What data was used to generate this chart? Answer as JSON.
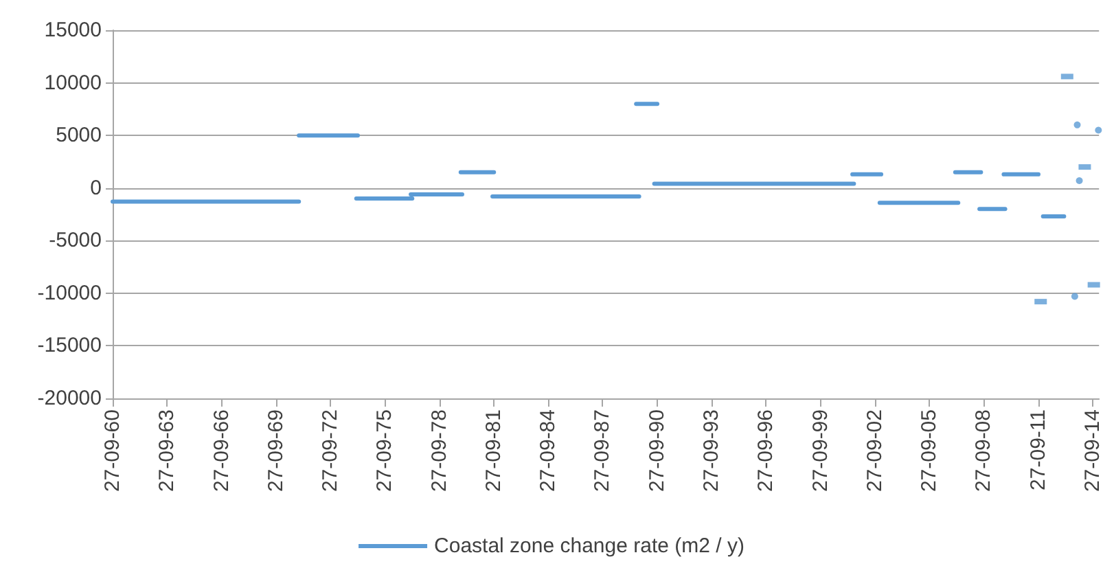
{
  "chart_data": {
    "type": "line",
    "xlim": [
      "1960-09-27",
      "2015-02-01"
    ],
    "xticks": [
      {
        "value": "1960-09-27",
        "label": "27-09-60"
      },
      {
        "value": "1963-09-27",
        "label": "27-09-63"
      },
      {
        "value": "1966-09-27",
        "label": "27-09-66"
      },
      {
        "value": "1969-09-27",
        "label": "27-09-69"
      },
      {
        "value": "1972-09-27",
        "label": "27-09-72"
      },
      {
        "value": "1975-09-27",
        "label": "27-09-75"
      },
      {
        "value": "1978-09-27",
        "label": "27-09-78"
      },
      {
        "value": "1981-09-27",
        "label": "27-09-81"
      },
      {
        "value": "1984-09-27",
        "label": "27-09-84"
      },
      {
        "value": "1987-09-27",
        "label": "27-09-87"
      },
      {
        "value": "1990-09-27",
        "label": "27-09-90"
      },
      {
        "value": "1993-09-27",
        "label": "27-09-93"
      },
      {
        "value": "1996-09-27",
        "label": "27-09-96"
      },
      {
        "value": "1999-09-27",
        "label": "27-09-99"
      },
      {
        "value": "2002-09-27",
        "label": "27-09-02"
      },
      {
        "value": "2005-09-27",
        "label": "27-09-05"
      },
      {
        "value": "2008-09-27",
        "label": "27-09-08"
      },
      {
        "value": "2011-09-27",
        "label": "27-09-11"
      },
      {
        "value": "2014-09-27",
        "label": "27-09-14"
      }
    ],
    "ylim": [
      -20000,
      15000
    ],
    "yticks": [
      -20000,
      -15000,
      -10000,
      -5000,
      0,
      5000,
      10000,
      15000
    ],
    "grid": "y",
    "legend": "bottom",
    "marker": "none",
    "line_style": "solid",
    "series": [
      {
        "name": "Coastal zone change rate (m2 / y)",
        "color": "#5b9bd5",
        "x": [
          "1960-09-27",
          "1971-01-01"
        ],
        "values": [
          -1300,
          -1300
        ]
      },
      {
        "color": "#5b9bd5",
        "x": [
          "1971-01-01",
          "1974-04-01"
        ],
        "values": [
          5000,
          5000
        ]
      },
      {
        "color": "#5b9bd5",
        "x": [
          "1974-03-01",
          "1977-04-01"
        ],
        "values": [
          -1000,
          -1000
        ]
      },
      {
        "color": "#5b9bd5",
        "x": [
          "1977-03-01",
          "1980-01-01"
        ],
        "values": [
          -600,
          -600
        ]
      },
      {
        "color": "#5b9bd5",
        "x": [
          "1979-12-01",
          "1981-10-01"
        ],
        "values": [
          1500,
          1500
        ]
      },
      {
        "color": "#5b9bd5",
        "x": [
          "1981-09-01",
          "1989-10-01"
        ],
        "values": [
          -800,
          -800
        ]
      },
      {
        "color": "#5b9bd5",
        "x": [
          "1989-08-01",
          "1990-10-01"
        ],
        "values": [
          8000,
          8000
        ]
      },
      {
        "color": "#5b9bd5",
        "x": [
          "1990-08-01",
          "2001-08-01"
        ],
        "values": [
          400,
          400
        ]
      },
      {
        "color": "#5b9bd5",
        "x": [
          "2001-07-01",
          "2003-02-01"
        ],
        "values": [
          1300,
          1300
        ]
      },
      {
        "color": "#5b9bd5",
        "x": [
          "2003-01-01",
          "2007-05-01"
        ],
        "values": [
          -1400,
          -1400
        ]
      },
      {
        "color": "#5b9bd5",
        "x": [
          "2007-03-01",
          "2008-08-01"
        ],
        "values": [
          1500,
          1500
        ]
      },
      {
        "color": "#5b9bd5",
        "x": [
          "2008-07-01",
          "2009-12-01"
        ],
        "values": [
          -2000,
          -2000
        ]
      },
      {
        "color": "#5b9bd5",
        "x": [
          "2009-11-01",
          "2011-10-01"
        ],
        "values": [
          1300,
          1300
        ]
      },
      {
        "type": "scatter",
        "marker": "square",
        "color": "#5b9bd5",
        "x": [
          "2011-11-15"
        ],
        "values": [
          -10800
        ]
      },
      {
        "color": "#5b9bd5",
        "x": [
          "2012-01-01",
          "2013-03-01"
        ],
        "values": [
          -2700,
          -2700
        ]
      },
      {
        "type": "scatter",
        "marker": "square",
        "color": "#5b9bd5",
        "x": [
          "2013-05-01"
        ],
        "values": [
          10600
        ]
      },
      {
        "type": "scatter",
        "marker": "circle",
        "color": "#5b9bd5",
        "x": [
          "2013-10-01"
        ],
        "values": [
          -10300
        ]
      },
      {
        "type": "scatter",
        "marker": "circle",
        "color": "#5b9bd5",
        "x": [
          "2013-11-20"
        ],
        "values": [
          6000
        ]
      },
      {
        "type": "scatter",
        "marker": "circle",
        "color": "#5b9bd5",
        "x": [
          "2014-01-01"
        ],
        "values": [
          700
        ]
      },
      {
        "type": "scatter",
        "marker": "square",
        "color": "#5b9bd5",
        "x": [
          "2014-04-20"
        ],
        "values": [
          2000
        ]
      },
      {
        "type": "scatter",
        "marker": "square",
        "color": "#5b9bd5",
        "x": [
          "2014-10-20"
        ],
        "values": [
          -9200
        ]
      },
      {
        "type": "scatter",
        "marker": "circle",
        "color": "#5b9bd5",
        "x": [
          "2015-01-20"
        ],
        "values": [
          5500
        ]
      }
    ]
  }
}
